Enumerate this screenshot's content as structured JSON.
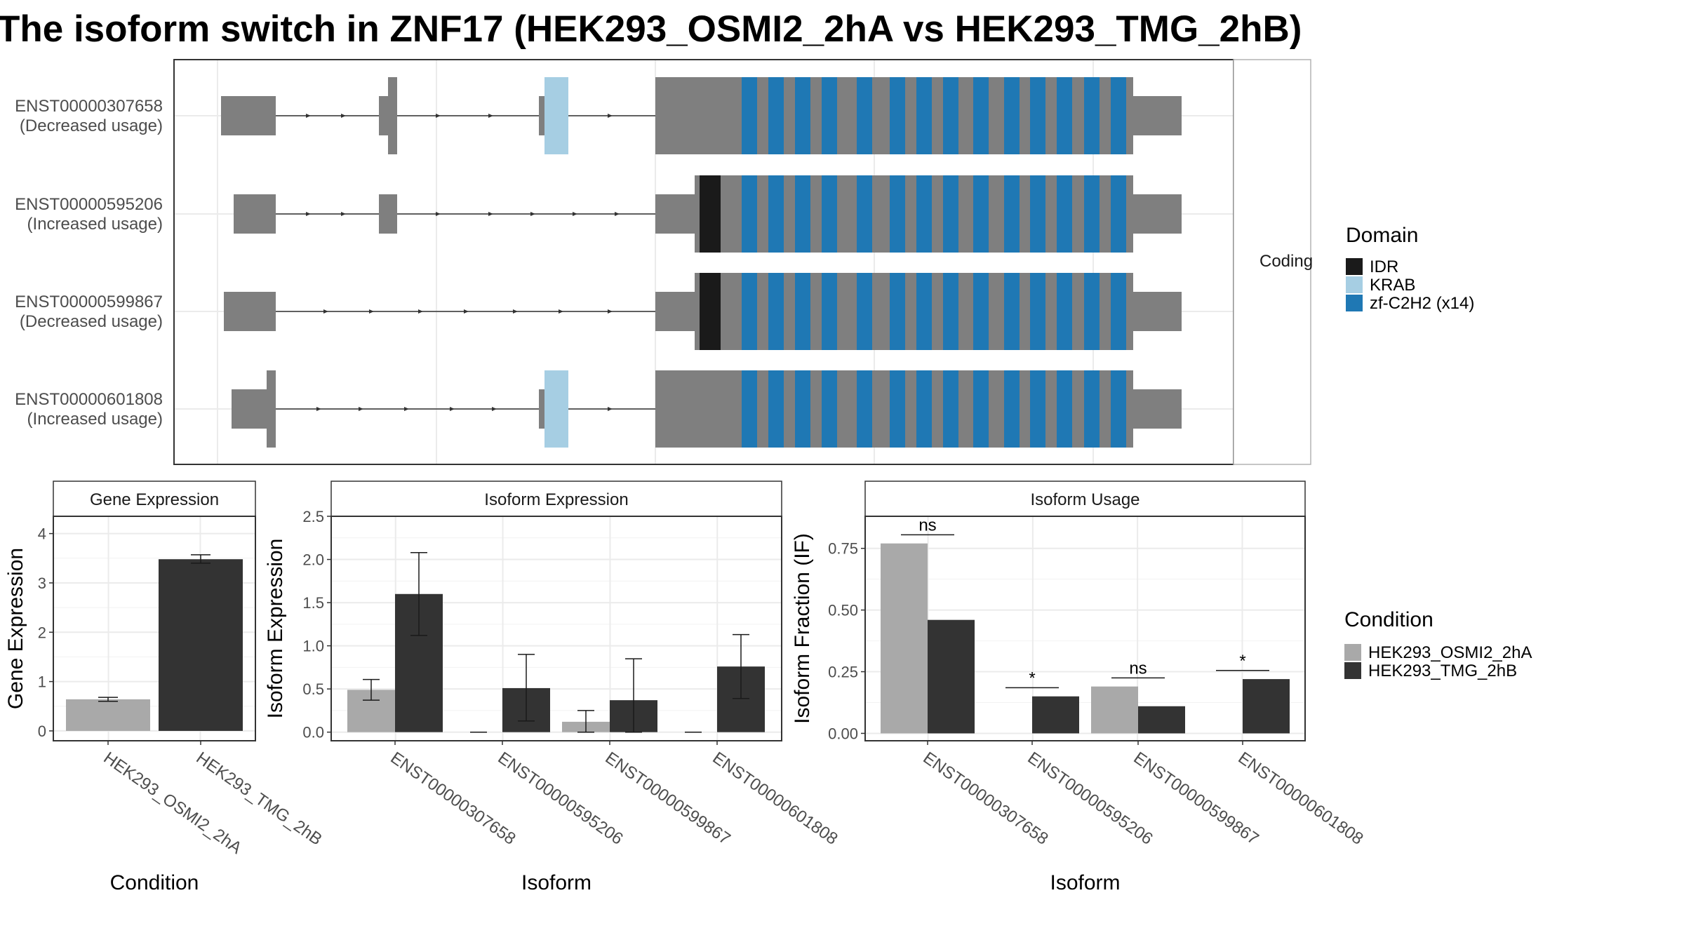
{
  "title": "The isoform switch in ZNF17 (HEK293_OSMI2_2hA vs HEK293_TMG_2hB)",
  "colors": {
    "background": "#ffffff",
    "gene_body": "#7f7f7f",
    "idr": "#1a1a1a",
    "krab": "#a6cee3",
    "zf": "#1f78b4",
    "condition_a": "#a9a9a9",
    "condition_b": "#333333",
    "grid": "#ebebeb",
    "strip_fill": "#ffffff",
    "panel_border": "#333333"
  },
  "chart_data": [
    {
      "type": "gene-structure",
      "panel_label": "Coding",
      "transcripts": [
        {
          "id": "ENST00000307658",
          "usage": "(Decreased usage)"
        },
        {
          "id": "ENST00000595206",
          "usage": "(Increased usage)"
        },
        {
          "id": "ENST00000599867",
          "usage": "(Decreased usage)"
        },
        {
          "id": "ENST00000601808",
          "usage": "(Increased usage)"
        }
      ],
      "legend": {
        "title": "Domain",
        "entries": [
          {
            "label": "IDR",
            "color_key": "idr"
          },
          {
            "label": "KRAB",
            "color_key": "krab"
          },
          {
            "label": "zf-C2H2 (x14)",
            "color_key": "zf"
          }
        ]
      }
    },
    {
      "type": "bar",
      "strip": "Gene Expression",
      "xlabel": "Condition",
      "ylabel": "Gene Expression",
      "categories": [
        "HEK293_OSMI2_2hA",
        "HEK293_TMG_2hB"
      ],
      "values": [
        0.64,
        3.48
      ],
      "errors": [
        [
          0.6,
          0.68
        ],
        [
          3.4,
          3.57
        ]
      ],
      "ylim": [
        -0.2,
        4.35
      ],
      "yticks": [
        "0",
        "1",
        "2",
        "3",
        "4"
      ]
    },
    {
      "type": "bar",
      "strip": "Isoform Expression",
      "xlabel": "Isoform",
      "ylabel": "Isoform Expression",
      "categories": [
        "ENST00000307658",
        "ENST00000595206",
        "ENST00000599867",
        "ENST00000601808"
      ],
      "series": [
        {
          "name": "HEK293_OSMI2_2hA",
          "values": [
            0.49,
            0.0,
            0.12,
            0.0
          ],
          "errors": [
            [
              0.37,
              0.61
            ],
            [
              0.0,
              0.0
            ],
            [
              0.0,
              0.25
            ],
            [
              0.0,
              0.0
            ]
          ]
        },
        {
          "name": "HEK293_TMG_2hB",
          "values": [
            1.6,
            0.51,
            0.37,
            0.76
          ],
          "errors": [
            [
              1.12,
              2.08
            ],
            [
              0.13,
              0.9
            ],
            [
              0.0,
              0.85
            ],
            [
              0.39,
              1.13
            ]
          ]
        }
      ],
      "ylim": [
        -0.1,
        2.5
      ],
      "yticks": [
        "0.0",
        "0.5",
        "1.0",
        "1.5",
        "2.0",
        "2.5"
      ]
    },
    {
      "type": "bar",
      "strip": "Isoform Usage",
      "xlabel": "Isoform",
      "ylabel": "Isoform Fraction (IF)",
      "categories": [
        "ENST00000307658",
        "ENST00000595206",
        "ENST00000599867",
        "ENST00000601808"
      ],
      "series": [
        {
          "name": "HEK293_OSMI2_2hA",
          "values": [
            0.77,
            0.0,
            0.19,
            0.0
          ]
        },
        {
          "name": "HEK293_TMG_2hB",
          "values": [
            0.46,
            0.15,
            0.11,
            0.22
          ]
        }
      ],
      "significance": [
        "ns",
        "*",
        "ns",
        "*"
      ],
      "ylim": [
        -0.03,
        0.88
      ],
      "yticks": [
        "0.00",
        "0.25",
        "0.50",
        "0.75"
      ]
    }
  ],
  "condition_legend": {
    "title": "Condition",
    "entries": [
      "HEK293_OSMI2_2hA",
      "HEK293_TMG_2hB"
    ]
  }
}
